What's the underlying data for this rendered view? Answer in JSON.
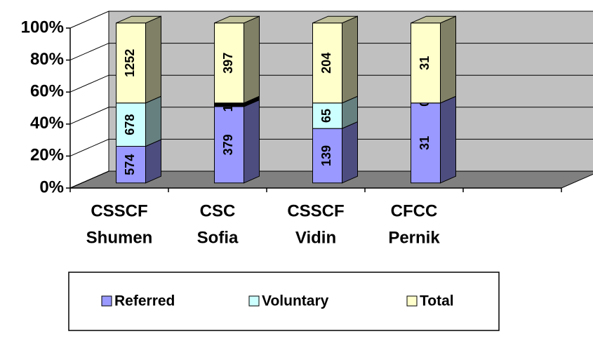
{
  "chart_data": {
    "type": "bar3d_stacked_percent",
    "categories": [
      [
        "CSSCF",
        "Shumen"
      ],
      [
        "CSC",
        "Sofia"
      ],
      [
        "CSSCF",
        "Vidin"
      ],
      [
        "CFCC",
        "Pernik"
      ]
    ],
    "series": [
      {
        "name": "Referred",
        "color": "#9999ff",
        "values": [
          574,
          379,
          139,
          31
        ]
      },
      {
        "name": "Voluntary",
        "color": "#ccffff",
        "values": [
          678,
          18,
          65,
          0
        ]
      },
      {
        "name": "Total",
        "color": "#ffffcc",
        "values": [
          1252,
          397,
          204,
          31
        ]
      }
    ],
    "ylim": [
      0,
      100
    ],
    "yticks": [
      {
        "value": 0,
        "label": "0%"
      },
      {
        "value": 20,
        "label": "20%"
      },
      {
        "value": 40,
        "label": "40%"
      },
      {
        "value": 60,
        "label": "60%"
      },
      {
        "value": 80,
        "label": "80%"
      },
      {
        "value": 100,
        "label": "100%"
      }
    ],
    "grid": true,
    "legend": "bottom"
  }
}
